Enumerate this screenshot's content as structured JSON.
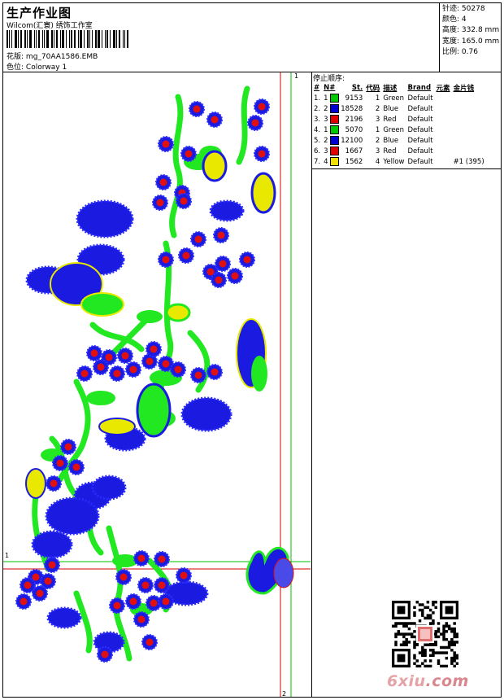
{
  "header": {
    "title": "生产作业图",
    "company": "Wilcom(汇寰) 绣饰工作室",
    "pattern_label": "花版:",
    "pattern_value": "mg_70AA1586.EMB",
    "color_label": "色位:",
    "color_value": "Colorway 1"
  },
  "stats": [
    {
      "label": "针迹:",
      "value": "50278"
    },
    {
      "label": "颜色:",
      "value": "4"
    },
    {
      "label": "高度:",
      "value": "332.8 mm"
    },
    {
      "label": "宽度:",
      "value": "165.0 mm"
    },
    {
      "label": "比例:",
      "value": "0.76"
    }
  ],
  "stop_sequence": {
    "title": "停止顺序:",
    "columns": {
      "seq": "#",
      "n": "N#",
      "st": "St.",
      "code": "代码",
      "desc": "描述",
      "brand": "Brand",
      "element": "元素",
      "sequin": "金片钱"
    },
    "rows": [
      {
        "seq": "1.",
        "n": "1",
        "color": "#00c800",
        "st": "9153",
        "code": "1",
        "desc": "Green",
        "brand": "Default",
        "extra": ""
      },
      {
        "seq": "2.",
        "n": "2",
        "color": "#0000d2",
        "st": "18528",
        "code": "2",
        "desc": "Blue",
        "brand": "Default",
        "extra": ""
      },
      {
        "seq": "3.",
        "n": "3",
        "color": "#e00000",
        "st": "2196",
        "code": "3",
        "desc": "Red",
        "brand": "Default",
        "extra": ""
      },
      {
        "seq": "4.",
        "n": "1",
        "color": "#00c800",
        "st": "5070",
        "code": "1",
        "desc": "Green",
        "brand": "Default",
        "extra": ""
      },
      {
        "seq": "5.",
        "n": "2",
        "color": "#0000d2",
        "st": "12100",
        "code": "2",
        "desc": "Blue",
        "brand": "Default",
        "extra": ""
      },
      {
        "seq": "6.",
        "n": "3",
        "color": "#e00000",
        "st": "1667",
        "code": "3",
        "desc": "Red",
        "brand": "Default",
        "extra": ""
      },
      {
        "seq": "7.",
        "n": "4",
        "color": "#f0e000",
        "st": "1562",
        "code": "4",
        "desc": "Yellow",
        "brand": "Default",
        "extra": "#1 (395)"
      }
    ]
  },
  "guides": {
    "top_mark": "1",
    "bottom_mark": "2",
    "left_mark": "1"
  },
  "watermark": {
    "site_a": "6xiu",
    "site_b": ".com"
  },
  "colors": {
    "green": "#22e822",
    "blue": "#1a1ae0",
    "red": "#e01010",
    "yellow": "#e8e800",
    "guide_red": "#d00000",
    "guide_green": "#00c000"
  }
}
